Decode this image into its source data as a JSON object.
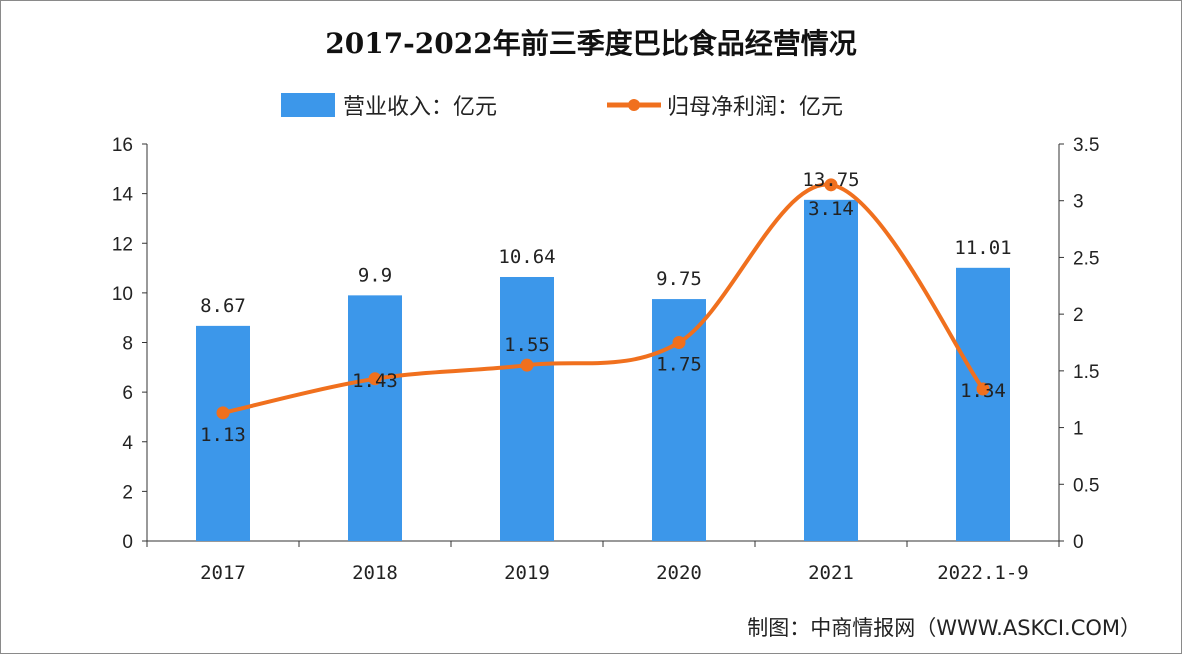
{
  "chart_data": {
    "type": "bar+line",
    "title": "2017-2022年前三季度巴比食品经营情况",
    "categories": [
      "2017",
      "2018",
      "2019",
      "2020",
      "2021",
      "2022.1-9"
    ],
    "series": [
      {
        "name": "营业收入：亿元",
        "type": "bar",
        "axis": "left",
        "color": "#3c97ea",
        "values": [
          8.67,
          9.9,
          10.64,
          9.75,
          13.75,
          11.01
        ],
        "labels": [
          "8.67",
          "9.9",
          "10.64",
          "9.75",
          "13.75",
          "11.01"
        ]
      },
      {
        "name": "归母净利润：亿元",
        "type": "line",
        "axis": "right",
        "color": "#f0701e",
        "smooth": true,
        "values": [
          1.13,
          1.43,
          1.55,
          1.75,
          3.14,
          1.34
        ],
        "labels": [
          "1.13",
          "1.43",
          "1.55",
          "1.75",
          "3.14",
          "1.34"
        ]
      }
    ],
    "y_left": {
      "range": [
        0,
        16
      ],
      "ticks": [
        "0",
        "2",
        "4",
        "6",
        "8",
        "10",
        "12",
        "14",
        "16"
      ]
    },
    "y_right": {
      "range": [
        0,
        3.5
      ],
      "ticks": [
        "0",
        "0.5",
        "1",
        "1.5",
        "2",
        "2.5",
        "3",
        "3.5"
      ]
    },
    "grid": false,
    "legend_placement": "top-center",
    "source": "制图：中商情报网（WWW.ASKCI.COM）"
  }
}
